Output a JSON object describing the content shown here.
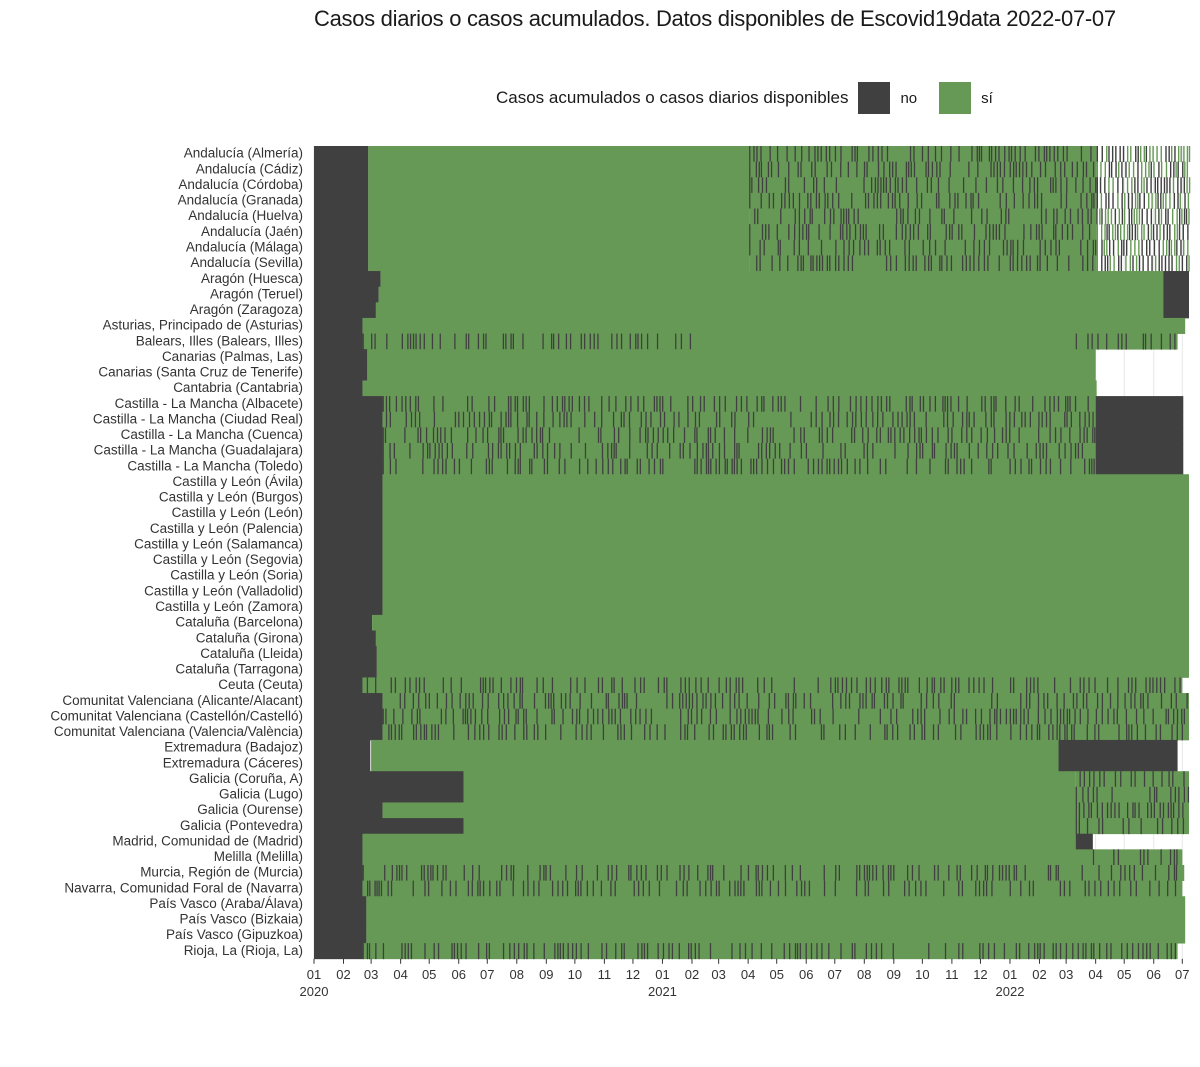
{
  "chart_data": {
    "type": "heatmap",
    "title": "Casos diarios o casos acumulados. Datos disponibles de Escovid19data 2022-07-07",
    "legend": {
      "title": "Casos acumulados o casos diarios disponibles",
      "placement": "top",
      "entries": [
        {
          "label": "no",
          "color": "#404040"
        },
        {
          "label": "sí",
          "color": "#669955"
        }
      ]
    },
    "x_axis": {
      "type": "date",
      "range": [
        "2020-01-01",
        "2022-07-07"
      ],
      "tick_labels": [
        "01",
        "02",
        "03",
        "04",
        "05",
        "06",
        "07",
        "08",
        "09",
        "10",
        "11",
        "12",
        "01",
        "02",
        "03",
        "04",
        "05",
        "06",
        "07",
        "08",
        "09",
        "10",
        "11",
        "12",
        "01",
        "02",
        "03",
        "04",
        "05",
        "06",
        "07"
      ],
      "year_labels": [
        "2020",
        "2021",
        "2022"
      ]
    },
    "grid": true,
    "rows": [
      {
        "name": "Andalucía (Almería)",
        "segments": [
          [
            "2020-01-01",
            "2020-02-26",
            "no"
          ],
          [
            "2020-02-27",
            "2021-04-01",
            "sí"
          ],
          [
            "2021-04-02",
            "2022-04-01",
            "mixed"
          ],
          [
            "2022-04-02",
            "2022-07-07",
            "sparse"
          ]
        ]
      },
      {
        "name": "Andalucía (Cádiz)",
        "segments": [
          [
            "2020-01-01",
            "2020-02-26",
            "no"
          ],
          [
            "2020-02-27",
            "2021-04-01",
            "sí"
          ],
          [
            "2021-04-02",
            "2022-04-01",
            "mixed"
          ],
          [
            "2022-04-02",
            "2022-07-07",
            "sparse"
          ]
        ]
      },
      {
        "name": "Andalucía (Córdoba)",
        "segments": [
          [
            "2020-01-01",
            "2020-02-26",
            "no"
          ],
          [
            "2020-02-27",
            "2021-04-01",
            "sí"
          ],
          [
            "2021-04-02",
            "2022-04-01",
            "mixed"
          ],
          [
            "2022-04-02",
            "2022-07-07",
            "sparse"
          ]
        ]
      },
      {
        "name": "Andalucía (Granada)",
        "segments": [
          [
            "2020-01-01",
            "2020-02-26",
            "no"
          ],
          [
            "2020-02-27",
            "2021-04-01",
            "sí"
          ],
          [
            "2021-04-02",
            "2022-04-01",
            "mixed"
          ],
          [
            "2022-04-02",
            "2022-07-07",
            "sparse"
          ]
        ]
      },
      {
        "name": "Andalucía (Huelva)",
        "segments": [
          [
            "2020-01-01",
            "2020-02-26",
            "no"
          ],
          [
            "2020-02-27",
            "2021-04-01",
            "sí"
          ],
          [
            "2021-04-02",
            "2022-04-01",
            "mixed"
          ],
          [
            "2022-04-02",
            "2022-07-07",
            "sparse"
          ]
        ]
      },
      {
        "name": "Andalucía (Jaén)",
        "segments": [
          [
            "2020-01-01",
            "2020-02-26",
            "no"
          ],
          [
            "2020-02-27",
            "2021-04-01",
            "sí"
          ],
          [
            "2021-04-02",
            "2022-04-01",
            "mixed"
          ],
          [
            "2022-04-02",
            "2022-07-07",
            "sparse"
          ]
        ]
      },
      {
        "name": "Andalucía (Málaga)",
        "segments": [
          [
            "2020-01-01",
            "2020-02-26",
            "no"
          ],
          [
            "2020-02-27",
            "2021-04-01",
            "sí"
          ],
          [
            "2021-04-02",
            "2022-04-01",
            "mixed"
          ],
          [
            "2022-04-02",
            "2022-07-07",
            "sparse"
          ]
        ]
      },
      {
        "name": "Andalucía (Sevilla)",
        "segments": [
          [
            "2020-01-01",
            "2020-02-26",
            "no"
          ],
          [
            "2020-02-27",
            "2021-04-01",
            "sí"
          ],
          [
            "2021-04-02",
            "2022-04-01",
            "mixed"
          ],
          [
            "2022-04-02",
            "2022-07-07",
            "sparse"
          ]
        ]
      },
      {
        "name": "Aragón (Huesca)",
        "segments": [
          [
            "2020-01-01",
            "2020-03-10",
            "no"
          ],
          [
            "2020-03-11",
            "2022-06-10",
            "sí"
          ],
          [
            "2022-06-11",
            "2022-07-07",
            "no"
          ]
        ]
      },
      {
        "name": "Aragón (Teruel)",
        "segments": [
          [
            "2020-01-01",
            "2020-03-08",
            "no"
          ],
          [
            "2020-03-09",
            "2022-06-10",
            "sí"
          ],
          [
            "2022-06-11",
            "2022-07-07",
            "no"
          ]
        ]
      },
      {
        "name": "Aragón (Zaragoza)",
        "segments": [
          [
            "2020-01-01",
            "2020-03-05",
            "no"
          ],
          [
            "2020-03-06",
            "2022-06-10",
            "sí"
          ],
          [
            "2022-06-11",
            "2022-07-07",
            "no"
          ]
        ]
      },
      {
        "name": "Asturias, Principado de (Asturias)",
        "segments": [
          [
            "2020-01-01",
            "2020-02-20",
            "no"
          ],
          [
            "2020-02-21",
            "2022-07-03",
            "sí"
          ]
        ]
      },
      {
        "name": "Balears, Illes (Balears, Illes)",
        "segments": [
          [
            "2020-01-01",
            "2020-02-20",
            "no"
          ],
          [
            "2020-02-21",
            "2021-01-31",
            "mixed"
          ],
          [
            "2021-02-01",
            "2022-03-10",
            "sí"
          ],
          [
            "2022-03-11",
            "2022-06-25",
            "mixed"
          ]
        ]
      },
      {
        "name": "Canarias (Palmas, Las)",
        "segments": [
          [
            "2020-01-01",
            "2020-02-25",
            "no"
          ],
          [
            "2020-02-26",
            "2022-03-31",
            "sí"
          ]
        ]
      },
      {
        "name": "Canarias (Santa Cruz de Tenerife)",
        "segments": [
          [
            "2020-01-01",
            "2020-02-25",
            "no"
          ],
          [
            "2020-02-26",
            "2022-03-31",
            "sí"
          ]
        ]
      },
      {
        "name": "Cantabria (Cantabria)",
        "segments": [
          [
            "2020-01-01",
            "2020-02-20",
            "no"
          ],
          [
            "2020-02-21",
            "2022-04-01",
            "sí"
          ]
        ]
      },
      {
        "name": "Castilla - La Mancha (Albacete)",
        "segments": [
          [
            "2020-01-01",
            "2020-03-12",
            "no"
          ],
          [
            "2020-03-13",
            "2022-03-31",
            "mixed"
          ],
          [
            "2022-04-01",
            "2022-07-01",
            "no"
          ]
        ]
      },
      {
        "name": "Castilla - La Mancha (Ciudad Real)",
        "segments": [
          [
            "2020-01-01",
            "2020-03-12",
            "no"
          ],
          [
            "2020-03-13",
            "2022-03-31",
            "mixed"
          ],
          [
            "2022-04-01",
            "2022-07-01",
            "no"
          ]
        ]
      },
      {
        "name": "Castilla - La Mancha (Cuenca)",
        "segments": [
          [
            "2020-01-01",
            "2020-03-12",
            "no"
          ],
          [
            "2020-03-13",
            "2022-03-31",
            "mixed"
          ],
          [
            "2022-04-01",
            "2022-07-01",
            "no"
          ]
        ]
      },
      {
        "name": "Castilla - La Mancha (Guadalajara)",
        "segments": [
          [
            "2020-01-01",
            "2020-03-12",
            "no"
          ],
          [
            "2020-03-13",
            "2022-03-31",
            "mixed"
          ],
          [
            "2022-04-01",
            "2022-07-01",
            "no"
          ]
        ]
      },
      {
        "name": "Castilla - La Mancha (Toledo)",
        "segments": [
          [
            "2020-01-01",
            "2020-03-12",
            "no"
          ],
          [
            "2020-03-13",
            "2022-03-31",
            "mixed"
          ],
          [
            "2022-04-01",
            "2022-07-01",
            "no"
          ]
        ]
      },
      {
        "name": "Castilla y León (Ávila)",
        "segments": [
          [
            "2020-01-01",
            "2020-03-12",
            "no"
          ],
          [
            "2020-03-13",
            "2022-07-07",
            "sí"
          ]
        ]
      },
      {
        "name": "Castilla y León (Burgos)",
        "segments": [
          [
            "2020-01-01",
            "2020-03-12",
            "no"
          ],
          [
            "2020-03-13",
            "2022-07-07",
            "sí"
          ]
        ]
      },
      {
        "name": "Castilla y León (León)",
        "segments": [
          [
            "2020-01-01",
            "2020-03-12",
            "no"
          ],
          [
            "2020-03-13",
            "2022-07-07",
            "sí"
          ]
        ]
      },
      {
        "name": "Castilla y León (Palencia)",
        "segments": [
          [
            "2020-01-01",
            "2020-03-12",
            "no"
          ],
          [
            "2020-03-13",
            "2022-07-07",
            "sí"
          ]
        ]
      },
      {
        "name": "Castilla y León (Salamanca)",
        "segments": [
          [
            "2020-01-01",
            "2020-03-12",
            "no"
          ],
          [
            "2020-03-13",
            "2022-07-07",
            "sí"
          ]
        ]
      },
      {
        "name": "Castilla y León (Segovia)",
        "segments": [
          [
            "2020-01-01",
            "2020-03-12",
            "no"
          ],
          [
            "2020-03-13",
            "2022-07-07",
            "sí"
          ]
        ]
      },
      {
        "name": "Castilla y León (Soria)",
        "segments": [
          [
            "2020-01-01",
            "2020-03-12",
            "no"
          ],
          [
            "2020-03-13",
            "2022-07-07",
            "sí"
          ]
        ]
      },
      {
        "name": "Castilla y León (Valladolid)",
        "segments": [
          [
            "2020-01-01",
            "2020-03-12",
            "no"
          ],
          [
            "2020-03-13",
            "2022-07-07",
            "sí"
          ]
        ]
      },
      {
        "name": "Castilla y León (Zamora)",
        "segments": [
          [
            "2020-01-01",
            "2020-03-12",
            "no"
          ],
          [
            "2020-03-13",
            "2022-07-07",
            "sí"
          ]
        ]
      },
      {
        "name": "Cataluña (Barcelona)",
        "segments": [
          [
            "2020-01-01",
            "2020-03-01",
            "no"
          ],
          [
            "2020-03-02",
            "2022-07-07",
            "sí"
          ]
        ]
      },
      {
        "name": "Cataluña (Girona)",
        "segments": [
          [
            "2020-01-01",
            "2020-03-05",
            "no"
          ],
          [
            "2020-03-06",
            "2022-07-07",
            "sí"
          ]
        ]
      },
      {
        "name": "Cataluña (Lleida)",
        "segments": [
          [
            "2020-01-01",
            "2020-03-06",
            "no"
          ],
          [
            "2020-03-07",
            "2022-07-07",
            "sí"
          ]
        ]
      },
      {
        "name": "Cataluña (Tarragona)",
        "segments": [
          [
            "2020-01-01",
            "2020-03-06",
            "no"
          ],
          [
            "2020-03-07",
            "2022-07-07",
            "sí"
          ]
        ]
      },
      {
        "name": "Ceuta (Ceuta)",
        "segments": [
          [
            "2020-01-01",
            "2020-02-20",
            "no"
          ],
          [
            "2020-02-21",
            "2022-06-30",
            "mixed"
          ]
        ]
      },
      {
        "name": "Comunitat Valenciana (Alicante/Alacant)",
        "segments": [
          [
            "2020-01-01",
            "2020-03-12",
            "no"
          ],
          [
            "2020-03-13",
            "2022-07-07",
            "mixed"
          ]
        ]
      },
      {
        "name": "Comunitat Valenciana (Castellón/Castelló)",
        "segments": [
          [
            "2020-01-01",
            "2020-03-12",
            "no"
          ],
          [
            "2020-03-13",
            "2022-07-07",
            "mixed"
          ]
        ]
      },
      {
        "name": "Comunitat Valenciana (Valencia/València)",
        "segments": [
          [
            "2020-01-01",
            "2020-03-12",
            "no"
          ],
          [
            "2020-03-13",
            "2022-07-07",
            "mixed"
          ]
        ]
      },
      {
        "name": "Extremadura (Badajoz)",
        "segments": [
          [
            "2020-01-01",
            "2020-02-28",
            "no"
          ],
          [
            "2020-03-01",
            "2022-02-20",
            "sí"
          ],
          [
            "2022-02-21",
            "2022-06-25",
            "no"
          ]
        ]
      },
      {
        "name": "Extremadura (Cáceres)",
        "segments": [
          [
            "2020-01-01",
            "2020-02-28",
            "no"
          ],
          [
            "2020-03-01",
            "2022-02-20",
            "sí"
          ],
          [
            "2022-02-21",
            "2022-06-25",
            "no"
          ]
        ]
      },
      {
        "name": "Galicia (Coruña, A)",
        "segments": [
          [
            "2020-01-01",
            "2020-06-05",
            "no"
          ],
          [
            "2020-06-06",
            "2022-03-10",
            "sí"
          ],
          [
            "2022-03-11",
            "2022-07-07",
            "mixed"
          ]
        ]
      },
      {
        "name": "Galicia (Lugo)",
        "segments": [
          [
            "2020-01-01",
            "2020-06-05",
            "no"
          ],
          [
            "2020-06-06",
            "2022-03-10",
            "sí"
          ],
          [
            "2022-03-11",
            "2022-07-07",
            "mixed"
          ]
        ]
      },
      {
        "name": "Galicia (Ourense)",
        "segments": [
          [
            "2020-01-01",
            "2020-03-12",
            "no"
          ],
          [
            "2020-03-13",
            "2022-03-10",
            "sí"
          ],
          [
            "2022-03-11",
            "2022-07-07",
            "mixed"
          ]
        ]
      },
      {
        "name": "Galicia (Pontevedra)",
        "segments": [
          [
            "2020-01-01",
            "2020-06-05",
            "no"
          ],
          [
            "2020-06-06",
            "2022-03-10",
            "sí"
          ],
          [
            "2022-03-11",
            "2022-07-07",
            "mixed"
          ]
        ]
      },
      {
        "name": "Madrid, Comunidad de (Madrid)",
        "segments": [
          [
            "2020-01-01",
            "2020-02-20",
            "no"
          ],
          [
            "2020-02-21",
            "2022-03-10",
            "sí"
          ],
          [
            "2022-03-11",
            "2022-03-28",
            "no"
          ]
        ]
      },
      {
        "name": "Melilla (Melilla)",
        "segments": [
          [
            "2020-01-01",
            "2020-02-20",
            "no"
          ],
          [
            "2020-02-21",
            "2022-03-28",
            "sí"
          ],
          [
            "2022-03-29",
            "2022-06-30",
            "mixed"
          ]
        ]
      },
      {
        "name": "Murcia, Región de (Murcia)",
        "segments": [
          [
            "2020-01-01",
            "2020-02-20",
            "no"
          ],
          [
            "2020-02-21",
            "2022-07-02",
            "mixed"
          ]
        ]
      },
      {
        "name": "Navarra, Comunidad Foral de (Navarra)",
        "segments": [
          [
            "2020-01-01",
            "2020-02-20",
            "no"
          ],
          [
            "2020-02-21",
            "2022-06-30",
            "mixed"
          ]
        ]
      },
      {
        "name": "País Vasco (Araba/Álava)",
        "segments": [
          [
            "2020-01-01",
            "2020-02-24",
            "no"
          ],
          [
            "2020-02-25",
            "2022-07-03",
            "sí"
          ]
        ]
      },
      {
        "name": "País Vasco (Bizkaia)",
        "segments": [
          [
            "2020-01-01",
            "2020-02-24",
            "no"
          ],
          [
            "2020-02-25",
            "2022-07-03",
            "sí"
          ]
        ]
      },
      {
        "name": "País Vasco (Gipuzkoa)",
        "segments": [
          [
            "2020-01-01",
            "2020-02-24",
            "no"
          ],
          [
            "2020-02-25",
            "2022-07-03",
            "sí"
          ]
        ]
      },
      {
        "name": "Rioja, La (Rioja, La)",
        "segments": [
          [
            "2020-01-01",
            "2020-02-20",
            "no"
          ],
          [
            "2020-02-21",
            "2022-03-31",
            "mixed"
          ],
          [
            "2022-04-01",
            "2022-06-25",
            "mixed"
          ]
        ]
      }
    ]
  }
}
